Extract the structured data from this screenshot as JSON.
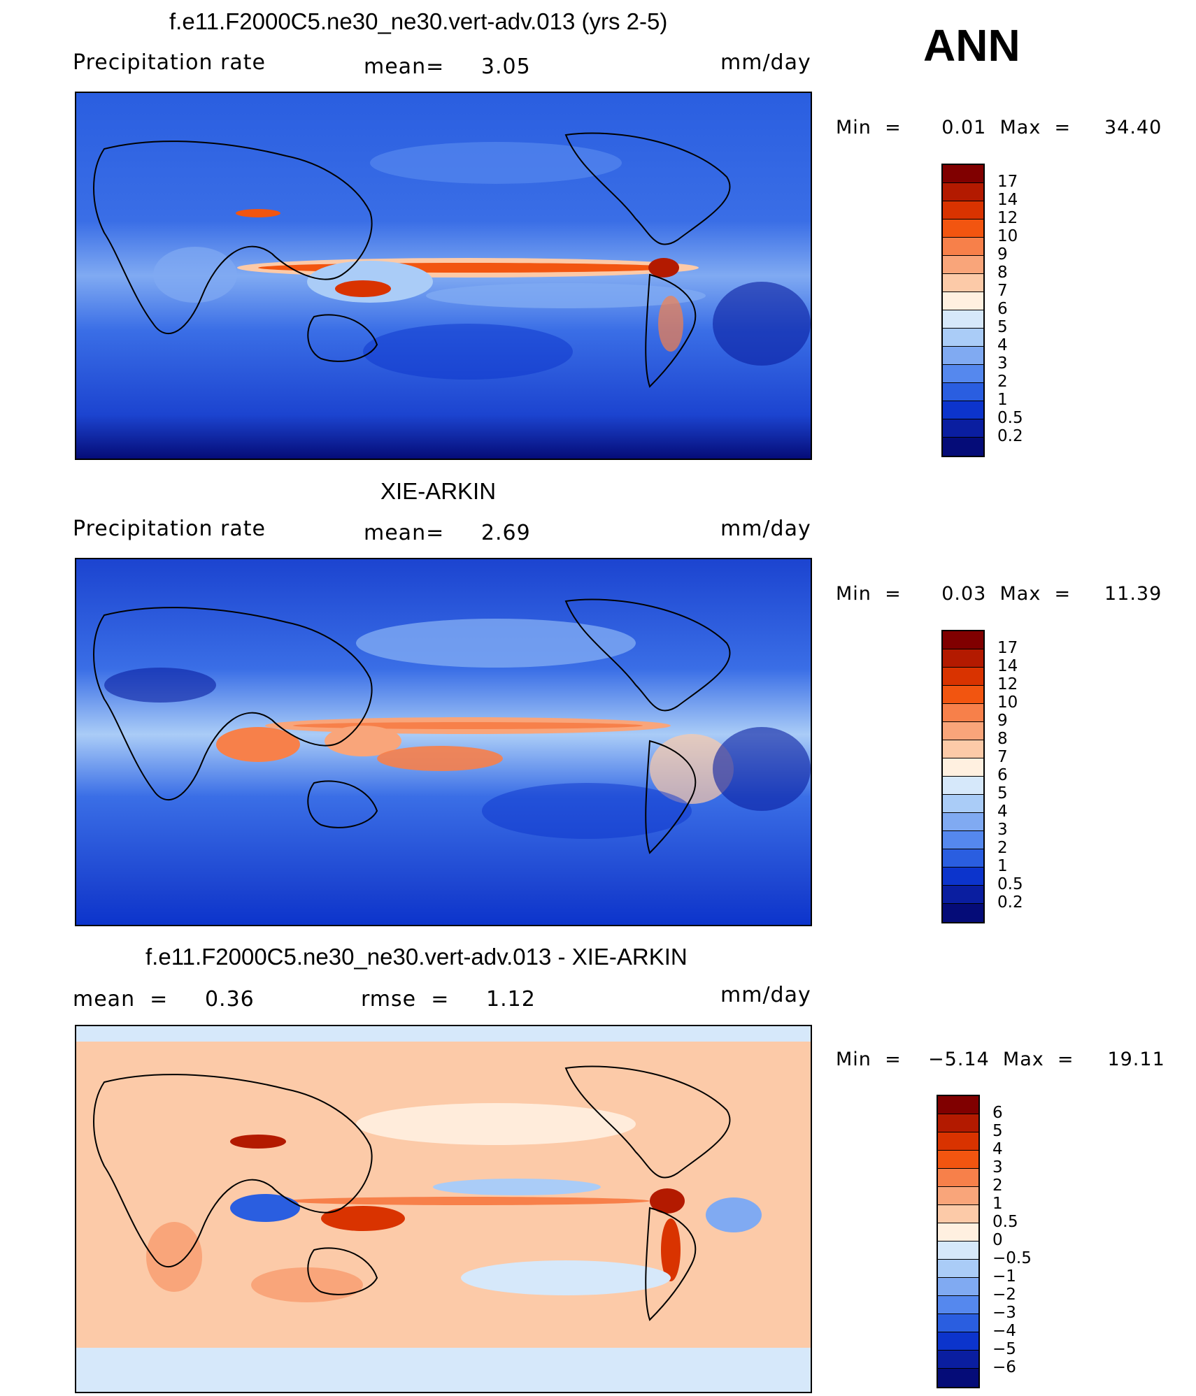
{
  "season": "ANN",
  "panels": [
    {
      "title": "f.e11.F2000C5.ne30_ne30.vert-adv.013 (yrs 2-5)",
      "left_label": "Precipitation  rate",
      "center_label": "mean=     3.05",
      "units": "mm/day",
      "minmax": "Min  =      0.01  Max  =     34.40"
    },
    {
      "title": "XIE-ARKIN",
      "left_label": "Precipitation  rate",
      "center_label": "mean=     2.69",
      "units": "mm/day",
      "minmax": "Min  =      0.03  Max  =     11.39"
    },
    {
      "title": "f.e11.F2000C5.ne30_ne30.vert-adv.013 - XIE-ARKIN",
      "left_label": "mean  =     0.36",
      "center_label": "rmse  =     1.12",
      "units": "mm/day",
      "minmax": "Min  =    −5.14  Max  =     19.11"
    }
  ],
  "colorbars": {
    "precip": {
      "labels": [
        "17",
        "14",
        "12",
        "10",
        "9",
        "8",
        "7",
        "6",
        "5",
        "4",
        "3",
        "2",
        "1",
        "0.5",
        "0.2"
      ],
      "colors": [
        "#800000",
        "#b31a00",
        "#d93300",
        "#f25510",
        "#f7804a",
        "#f9a57a",
        "#fccaa8",
        "#fff0e0",
        "#d6e8fa",
        "#aaccf7",
        "#80aaf2",
        "#5588ee",
        "#2a5ee0",
        "#0c34cc",
        "#0a1ea0",
        "#050c78"
      ]
    },
    "diff": {
      "labels": [
        "6",
        "5",
        "4",
        "3",
        "2",
        "1",
        "0.5",
        "0",
        "−0.5",
        "−1",
        "−2",
        "−3",
        "−4",
        "−5",
        "−6"
      ],
      "colors": [
        "#800000",
        "#b31a00",
        "#d93300",
        "#f25510",
        "#f7804a",
        "#f9a57a",
        "#fccaa8",
        "#fff0e0",
        "#d6e8fa",
        "#aaccf7",
        "#80aaf2",
        "#5588ee",
        "#2a5ee0",
        "#0c34cc",
        "#0a1ea0",
        "#050c78"
      ]
    }
  }
}
